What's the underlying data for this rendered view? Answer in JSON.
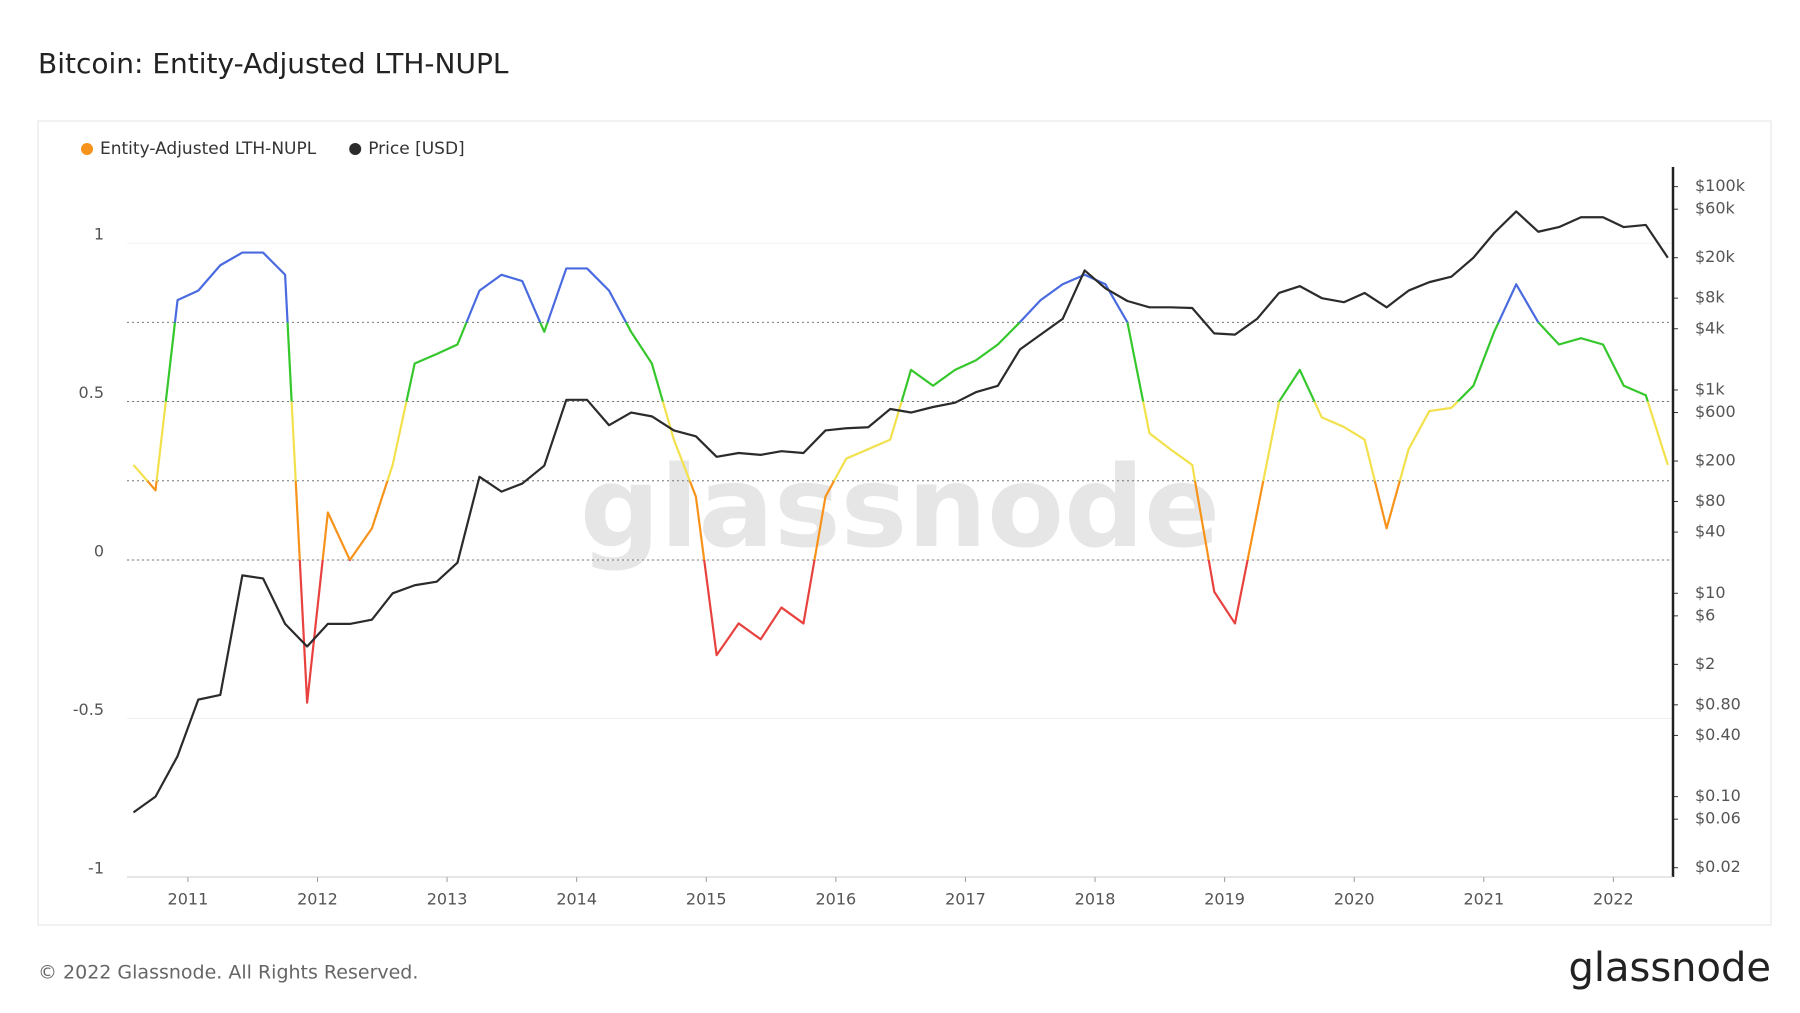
{
  "chart_data": {
    "type": "line",
    "title": "Bitcoin: Entity-Adjusted LTH-NUPL",
    "x": [
      2010.58,
      2010.75,
      2010.92,
      2011.08,
      2011.25,
      2011.42,
      2011.58,
      2011.75,
      2011.92,
      2012.08,
      2012.25,
      2012.42,
      2012.58,
      2012.75,
      2012.92,
      2013.08,
      2013.25,
      2013.42,
      2013.58,
      2013.75,
      2013.92,
      2014.08,
      2014.25,
      2014.42,
      2014.58,
      2014.75,
      2014.92,
      2015.08,
      2015.25,
      2015.42,
      2015.58,
      2015.75,
      2015.92,
      2016.08,
      2016.25,
      2016.42,
      2016.58,
      2016.75,
      2016.92,
      2017.08,
      2017.25,
      2017.42,
      2017.58,
      2017.75,
      2017.92,
      2018.08,
      2018.25,
      2018.42,
      2018.58,
      2018.75,
      2018.92,
      2019.08,
      2019.25,
      2019.42,
      2019.58,
      2019.75,
      2019.92,
      2020.08,
      2020.25,
      2020.42,
      2020.58,
      2020.75,
      2020.92,
      2021.08,
      2021.25,
      2021.42,
      2021.58,
      2021.75,
      2021.92,
      2022.08,
      2022.25,
      2022.42
    ],
    "series": [
      {
        "name": "Entity-Adjusted LTH-NUPL",
        "color": "#f7931a",
        "values": [
          0.3,
          0.22,
          0.82,
          0.85,
          0.93,
          0.97,
          0.97,
          0.9,
          -0.45,
          0.15,
          0.0,
          0.1,
          0.3,
          0.62,
          0.65,
          0.68,
          0.85,
          0.9,
          0.88,
          0.72,
          0.92,
          0.92,
          0.85,
          0.72,
          0.62,
          0.38,
          0.2,
          -0.3,
          -0.2,
          -0.25,
          -0.15,
          -0.2,
          0.2,
          0.32,
          0.35,
          0.38,
          0.6,
          0.55,
          0.6,
          0.63,
          0.68,
          0.75,
          0.82,
          0.87,
          0.9,
          0.87,
          0.75,
          0.4,
          0.35,
          0.3,
          -0.1,
          -0.2,
          0.15,
          0.5,
          0.6,
          0.45,
          0.42,
          0.38,
          0.1,
          0.35,
          0.47,
          0.48,
          0.55,
          0.72,
          0.87,
          0.75,
          0.68,
          0.7,
          0.68,
          0.55,
          0.52,
          0.3
        ]
      },
      {
        "name": "Price [USD]",
        "color": "#2b2b2b",
        "axis": "y2",
        "values": [
          0.07,
          0.1,
          0.25,
          0.9,
          1.0,
          15,
          14,
          5,
          3,
          5,
          5,
          5.5,
          10,
          12,
          13,
          20,
          140,
          100,
          120,
          180,
          800,
          800,
          450,
          600,
          550,
          400,
          350,
          220,
          240,
          230,
          250,
          240,
          400,
          420,
          430,
          650,
          600,
          680,
          750,
          950,
          1100,
          2500,
          3500,
          5000,
          15000,
          10000,
          7500,
          6500,
          6500,
          6400,
          3600,
          3500,
          5000,
          9000,
          10500,
          8000,
          7300,
          9000,
          6500,
          9500,
          11500,
          13000,
          20000,
          35000,
          57000,
          36000,
          40000,
          50000,
          50000,
          40000,
          42000,
          20000
        ]
      }
    ],
    "color_zones": {
      "thresholds": [
        0,
        0.25,
        0.5,
        0.75
      ],
      "colors": [
        "#e8423f",
        "#f7931a",
        "#f2e14c",
        "#35c72c",
        "#4a6be0"
      ]
    },
    "xlim": [
      2010.53,
      2022.46
    ],
    "xticks": [
      2011,
      2012,
      2013,
      2014,
      2015,
      2016,
      2017,
      2018,
      2019,
      2020,
      2021,
      2022
    ],
    "ylim": [
      -1,
      1.24
    ],
    "yticks": [
      1,
      0.5,
      0,
      -0.5,
      -1
    ],
    "y2lim": [
      0.0162,
      156000
    ],
    "y2log": true,
    "y2ticks": [
      {
        "value": 100000,
        "label": "$100k"
      },
      {
        "value": 60000,
        "label": "$60k"
      },
      {
        "value": 20000,
        "label": "$20k"
      },
      {
        "value": 8000,
        "label": "$8k"
      },
      {
        "value": 4000,
        "label": "$4k"
      },
      {
        "value": 1000,
        "label": "$1k"
      },
      {
        "value": 600,
        "label": "$600"
      },
      {
        "value": 200,
        "label": "$200"
      },
      {
        "value": 80,
        "label": "$80"
      },
      {
        "value": 40,
        "label": "$40"
      },
      {
        "value": 10,
        "label": "$10"
      },
      {
        "value": 6,
        "label": "$6"
      },
      {
        "value": 2,
        "label": "$2"
      },
      {
        "value": 0.8,
        "label": "$0.80"
      },
      {
        "value": 0.4,
        "label": "$0.40"
      },
      {
        "value": 0.1,
        "label": "$0.10"
      },
      {
        "value": 0.06,
        "label": "$0.06"
      },
      {
        "value": 0.02,
        "label": "$0.02"
      }
    ],
    "grid": true
  },
  "watermark": "glassnode",
  "footer": {
    "copyright": "© 2022 Glassnode. All Rights Reserved.",
    "logo": "glassnode"
  }
}
